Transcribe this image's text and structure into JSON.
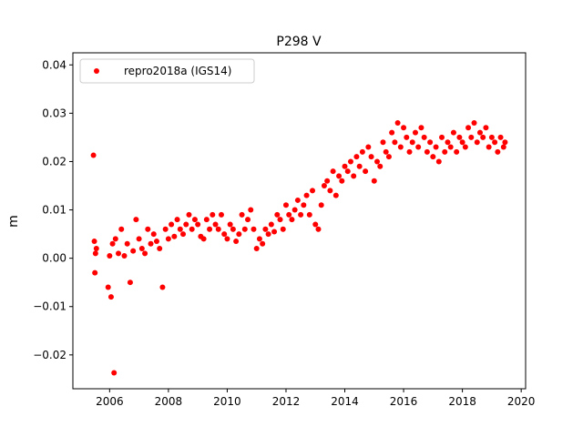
{
  "chart_data": {
    "type": "scatter",
    "title": "P298 V",
    "xlabel": "",
    "ylabel": "m",
    "xlim": [
      2004.75,
      2020.15
    ],
    "ylim": [
      -0.027,
      0.0425
    ],
    "x_ticks": [
      2006,
      2008,
      2010,
      2012,
      2014,
      2016,
      2018,
      2020
    ],
    "y_ticks": [
      -0.02,
      -0.01,
      0.0,
      0.01,
      0.02,
      0.03,
      0.04
    ],
    "x_tick_labels": [
      "2006",
      "2008",
      "2010",
      "2012",
      "2014",
      "2016",
      "2018",
      "2020"
    ],
    "y_tick_labels": [
      "−0.02",
      "−0.01",
      "0.00",
      "0.01",
      "0.02",
      "0.03",
      "0.04"
    ],
    "grid": false,
    "legend_position": "top-left",
    "series": [
      {
        "name": "repro2018a (IGS14)",
        "color": "#ff0000",
        "marker": "circle",
        "x": [
          2005.45,
          2005.48,
          2005.5,
          2005.52,
          2005.55,
          2005.95,
          2006.0,
          2006.05,
          2006.1,
          2006.15,
          2006.2,
          2006.3,
          2006.4,
          2006.5,
          2006.6,
          2006.7,
          2006.8,
          2006.9,
          2007.0,
          2007.1,
          2007.2,
          2007.3,
          2007.4,
          2007.5,
          2007.6,
          2007.7,
          2007.8,
          2007.9,
          2008.0,
          2008.1,
          2008.2,
          2008.3,
          2008.4,
          2008.5,
          2008.6,
          2008.7,
          2008.8,
          2008.9,
          2009.0,
          2009.1,
          2009.2,
          2009.3,
          2009.4,
          2009.5,
          2009.6,
          2009.7,
          2009.8,
          2009.9,
          2010.0,
          2010.1,
          2010.2,
          2010.3,
          2010.4,
          2010.5,
          2010.6,
          2010.7,
          2010.8,
          2010.9,
          2011.0,
          2011.1,
          2011.2,
          2011.3,
          2011.4,
          2011.5,
          2011.6,
          2011.7,
          2011.8,
          2011.9,
          2012.0,
          2012.1,
          2012.2,
          2012.3,
          2012.4,
          2012.5,
          2012.6,
          2012.7,
          2012.8,
          2012.9,
          2013.0,
          2013.1,
          2013.2,
          2013.3,
          2013.4,
          2013.5,
          2013.6,
          2013.7,
          2013.8,
          2013.9,
          2014.0,
          2014.1,
          2014.2,
          2014.3,
          2014.4,
          2014.5,
          2014.6,
          2014.7,
          2014.8,
          2014.9,
          2015.0,
          2015.1,
          2015.2,
          2015.3,
          2015.4,
          2015.5,
          2015.6,
          2015.7,
          2015.8,
          2015.9,
          2016.0,
          2016.1,
          2016.2,
          2016.3,
          2016.4,
          2016.5,
          2016.6,
          2016.7,
          2016.8,
          2016.9,
          2017.0,
          2017.1,
          2017.2,
          2017.3,
          2017.4,
          2017.5,
          2017.6,
          2017.7,
          2017.8,
          2017.9,
          2018.0,
          2018.1,
          2018.2,
          2018.3,
          2018.4,
          2018.5,
          2018.6,
          2018.7,
          2018.8,
          2018.9,
          2019.0,
          2019.1,
          2019.2,
          2019.3,
          2019.4,
          2019.45
        ],
        "y": [
          0.0213,
          0.0035,
          -0.003,
          0.001,
          0.002,
          -0.006,
          0.0005,
          -0.008,
          0.003,
          -0.0237,
          0.004,
          0.001,
          0.006,
          0.0005,
          0.003,
          -0.005,
          0.0015,
          0.008,
          0.004,
          0.002,
          0.001,
          0.006,
          0.003,
          0.005,
          0.0035,
          0.002,
          -0.006,
          0.006,
          0.004,
          0.007,
          0.0045,
          0.008,
          0.006,
          0.005,
          0.007,
          0.009,
          0.006,
          0.008,
          0.007,
          0.0045,
          0.004,
          0.008,
          0.006,
          0.009,
          0.007,
          0.006,
          0.009,
          0.005,
          0.004,
          0.007,
          0.006,
          0.0035,
          0.005,
          0.009,
          0.006,
          0.008,
          0.01,
          0.006,
          0.002,
          0.004,
          0.003,
          0.006,
          0.005,
          0.007,
          0.0055,
          0.009,
          0.008,
          0.006,
          0.011,
          0.009,
          0.008,
          0.01,
          0.012,
          0.009,
          0.011,
          0.013,
          0.009,
          0.014,
          0.007,
          0.006,
          0.011,
          0.015,
          0.016,
          0.014,
          0.018,
          0.013,
          0.017,
          0.016,
          0.019,
          0.018,
          0.02,
          0.017,
          0.021,
          0.019,
          0.022,
          0.018,
          0.023,
          0.021,
          0.016,
          0.02,
          0.019,
          0.024,
          0.022,
          0.021,
          0.026,
          0.024,
          0.028,
          0.023,
          0.027,
          0.025,
          0.022,
          0.024,
          0.026,
          0.023,
          0.027,
          0.025,
          0.022,
          0.024,
          0.021,
          0.023,
          0.02,
          0.025,
          0.022,
          0.024,
          0.023,
          0.026,
          0.022,
          0.025,
          0.024,
          0.023,
          0.027,
          0.025,
          0.028,
          0.024,
          0.026,
          0.025,
          0.027,
          0.023,
          0.025,
          0.024,
          0.022,
          0.025,
          0.023,
          0.024
        ]
      }
    ]
  }
}
